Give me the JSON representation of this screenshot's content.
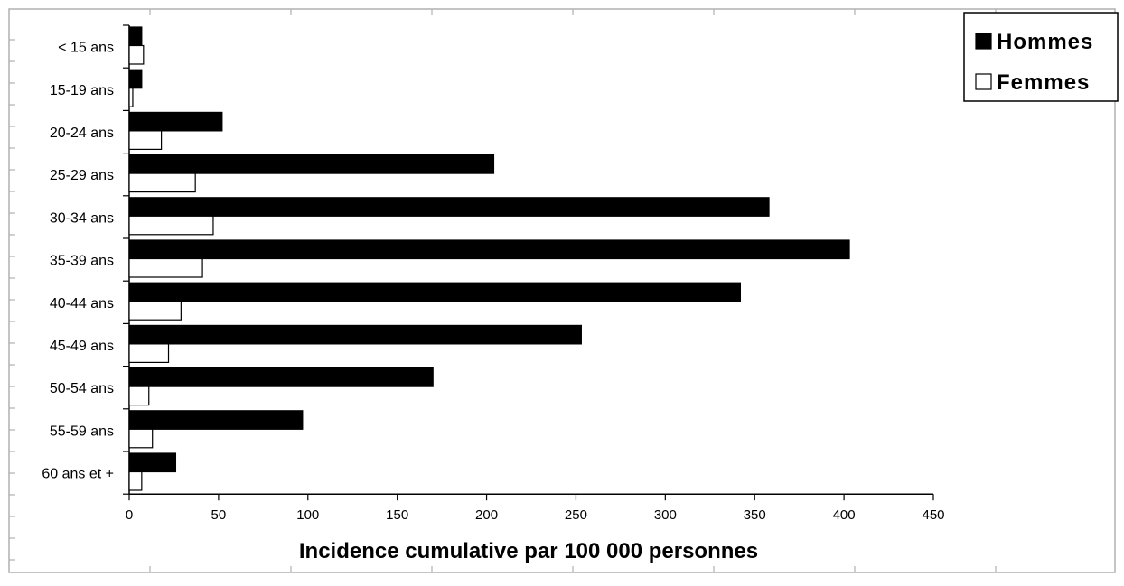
{
  "chart_data": {
    "type": "bar",
    "orientation": "horizontal",
    "categories": [
      "< 15 ans",
      "15-19 ans",
      "20-24 ans",
      "25-29 ans",
      "30-34 ans",
      "35-39 ans",
      "40-44 ans",
      "45-49 ans",
      "50-54 ans",
      "55-59 ans",
      "60 ans et +"
    ],
    "series": [
      {
        "name": "Hommes",
        "color": "#000000",
        "values": [
          7,
          7,
          52,
          204,
          358,
          403,
          342,
          253,
          170,
          97,
          26
        ]
      },
      {
        "name": "Femmes",
        "color": "#ffffff",
        "values": [
          8,
          2,
          18,
          37,
          47,
          41,
          29,
          22,
          11,
          13,
          7
        ]
      }
    ],
    "title": "",
    "xlabel": "Incidence cumulative par 100 000 personnes",
    "ylabel": "",
    "xlim": [
      0,
      450
    ],
    "xticks": [
      "0",
      "50",
      "100",
      "150",
      "200",
      "250",
      "300",
      "350",
      "400",
      "450"
    ],
    "grid": false,
    "legend_position": "top-right"
  }
}
